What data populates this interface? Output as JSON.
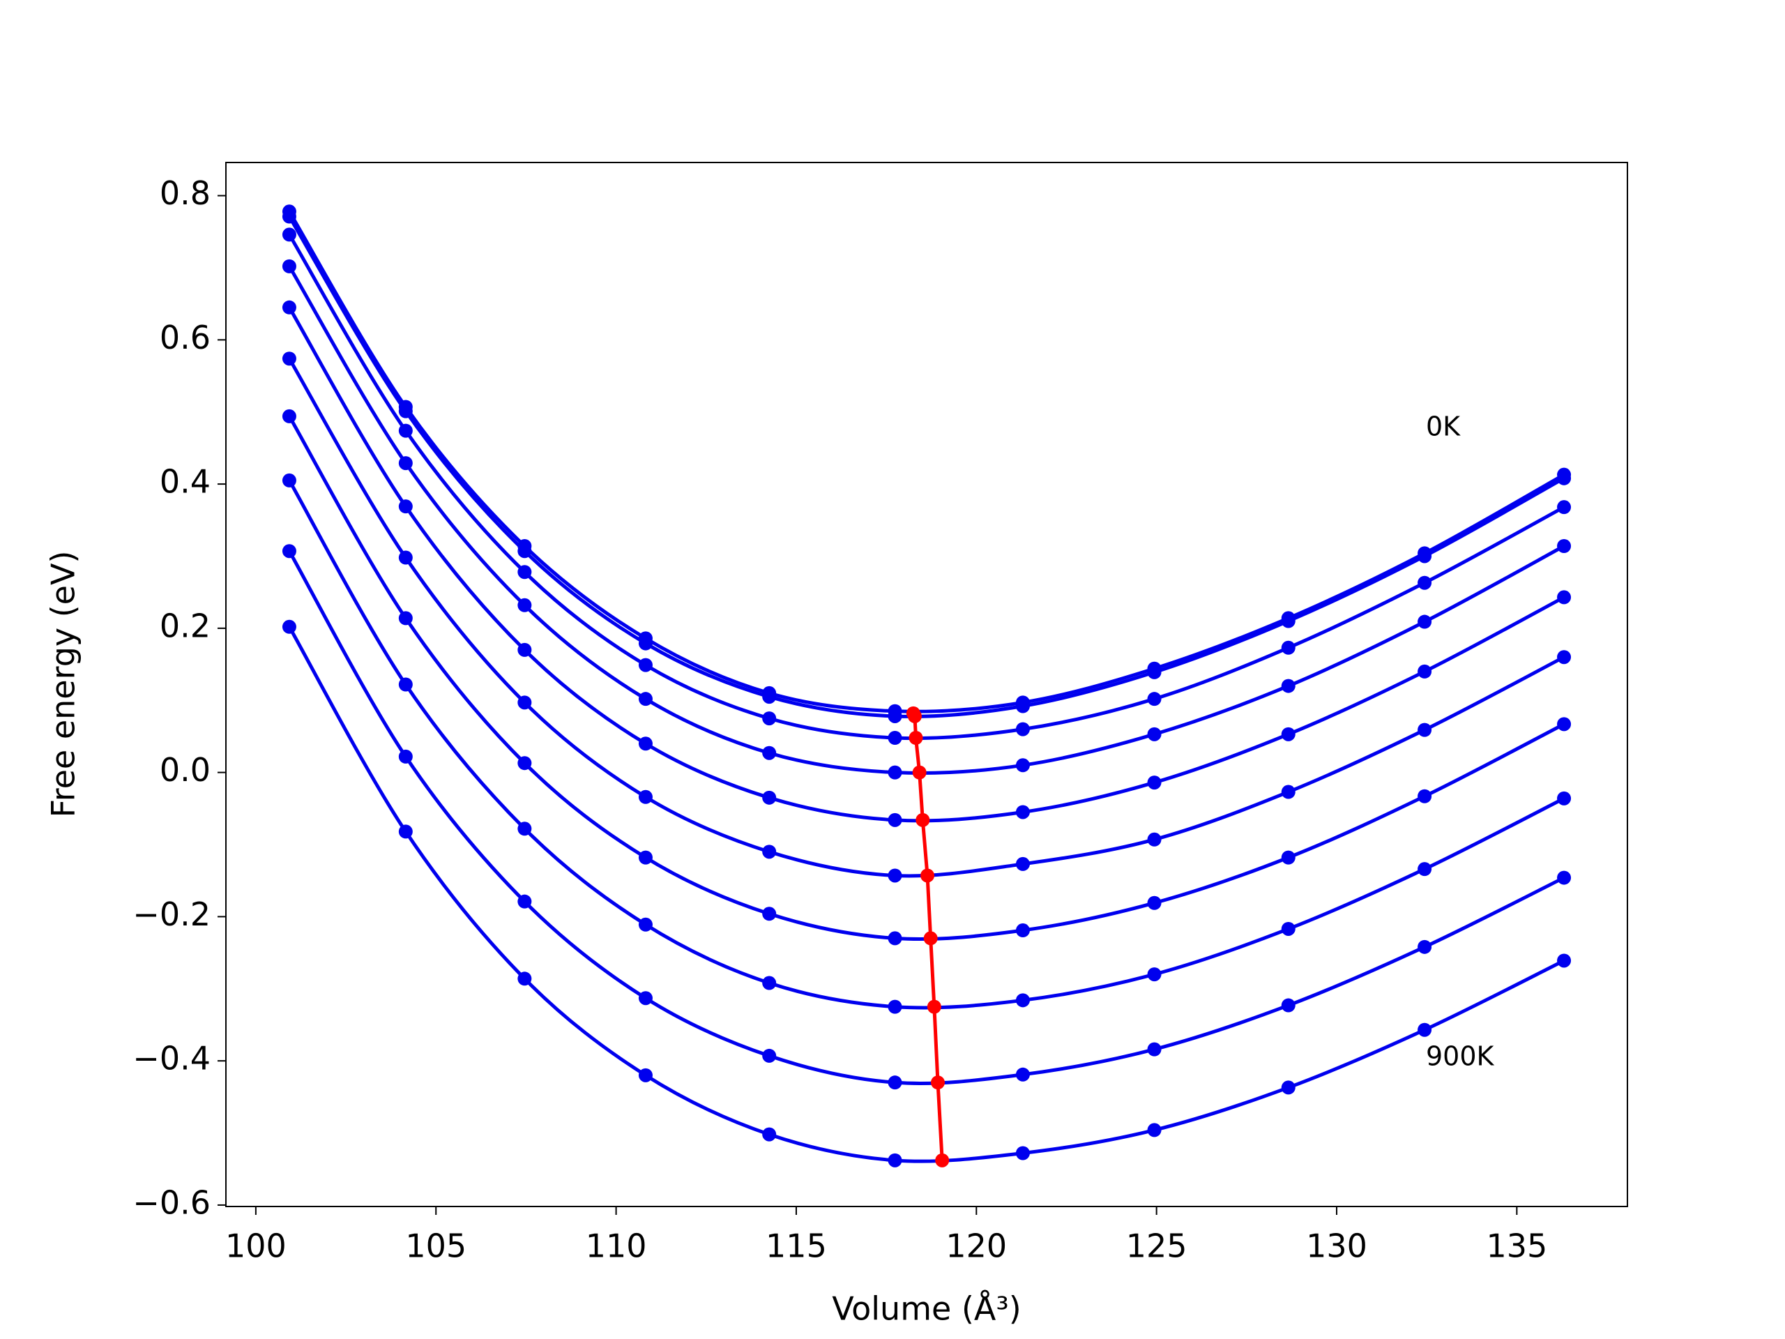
{
  "chart_data": {
    "type": "line",
    "xlabel": "Volume (Å³)",
    "ylabel": "Free energy (eV)",
    "xlim": [
      99.17,
      138.07
    ],
    "ylim": [
      -0.602,
      0.846
    ],
    "xticks": [
      100,
      105,
      110,
      115,
      120,
      125,
      130,
      135
    ],
    "yticks": [
      {
        "value": -0.6,
        "label": "−0.6"
      },
      {
        "value": -0.4,
        "label": "−0.4"
      },
      {
        "value": -0.2,
        "label": "−0.2"
      },
      {
        "value": 0,
        "label": "0.0"
      },
      0.2,
      0.4,
      0.6,
      0.8
    ],
    "x": [
      100.93,
      104.16,
      107.46,
      110.82,
      114.25,
      117.74,
      121.29,
      124.94,
      128.66,
      132.44,
      136.31
    ],
    "series": [
      {
        "color": "#0000ee",
        "values": [
          0.778,
          0.507,
          0.314,
          0.186,
          0.11,
          0.085,
          0.097,
          0.144,
          0.214,
          0.304,
          0.413
        ]
      },
      {
        "color": "#0000ee",
        "values": [
          0.771,
          0.501,
          0.307,
          0.179,
          0.105,
          0.078,
          0.092,
          0.139,
          0.21,
          0.3,
          0.408
        ]
      },
      {
        "color": "#0000ee",
        "values": [
          0.746,
          0.474,
          0.278,
          0.149,
          0.075,
          0.048,
          0.06,
          0.102,
          0.173,
          0.263,
          0.368
        ]
      },
      {
        "color": "#0000ee",
        "values": [
          0.702,
          0.429,
          0.232,
          0.102,
          0.027,
          0.0,
          0.01,
          0.053,
          0.12,
          0.209,
          0.314
        ]
      },
      {
        "color": "#0000ee",
        "values": [
          0.645,
          0.369,
          0.17,
          0.04,
          -0.035,
          -0.066,
          -0.055,
          -0.014,
          0.053,
          0.14,
          0.243
        ]
      },
      {
        "color": "#0000ee",
        "values": [
          0.574,
          0.298,
          0.097,
          -0.034,
          -0.11,
          -0.143,
          -0.127,
          -0.093,
          -0.027,
          0.059,
          0.16
        ]
      },
      {
        "color": "#0000ee",
        "values": [
          0.494,
          0.214,
          0.013,
          -0.118,
          -0.196,
          -0.23,
          -0.219,
          -0.181,
          -0.118,
          -0.033,
          0.067
        ]
      },
      {
        "color": "#0000ee",
        "values": [
          0.405,
          0.122,
          -0.078,
          -0.211,
          -0.292,
          -0.325,
          -0.316,
          -0.28,
          -0.217,
          -0.134,
          -0.036
        ]
      },
      {
        "color": "#0000ee",
        "values": [
          0.307,
          0.022,
          -0.179,
          -0.313,
          -0.393,
          -0.43,
          -0.419,
          -0.384,
          -0.323,
          -0.242,
          -0.146
        ]
      },
      {
        "color": "#0000ee",
        "values": [
          0.202,
          -0.082,
          -0.286,
          -0.42,
          -0.502,
          -0.538,
          -0.528,
          -0.496,
          -0.437,
          -0.357,
          -0.261
        ]
      },
      {
        "color": "#ff0000",
        "x": [
          118.25,
          118.29,
          118.32,
          118.42,
          118.51,
          118.64,
          118.73,
          118.83,
          118.93,
          119.05
        ],
        "values": [
          0.082,
          0.078,
          0.048,
          0.0,
          -0.066,
          -0.143,
          -0.23,
          -0.325,
          -0.43,
          -0.538
        ]
      }
    ],
    "annotations": [
      {
        "text": "0K"
      },
      {
        "text": "900K"
      }
    ]
  }
}
